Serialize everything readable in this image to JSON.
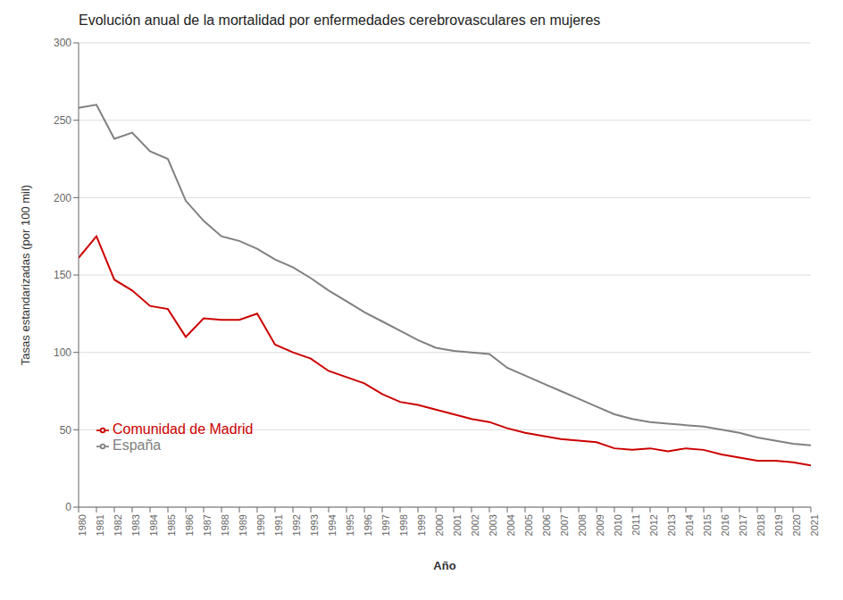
{
  "chart_data": {
    "type": "line",
    "title": "Evolución anual de la mortalidad por enfermedades cerebrovasculares en mujeres",
    "xlabel": "Año",
    "ylabel": "Tasas estandarizadas (por 100 mil)",
    "x": [
      1980,
      1981,
      1982,
      1983,
      1984,
      1985,
      1986,
      1987,
      1988,
      1989,
      1990,
      1991,
      1992,
      1993,
      1994,
      1995,
      1996,
      1997,
      1998,
      1999,
      2000,
      2001,
      2002,
      2003,
      2004,
      2005,
      2006,
      2007,
      2008,
      2009,
      2010,
      2011,
      2012,
      2013,
      2014,
      2015,
      2016,
      2017,
      2018,
      2019,
      2020,
      2021
    ],
    "series": [
      {
        "name": "Comunidad de Madrid",
        "color": "#cc0000",
        "values": [
          161,
          175,
          147,
          140,
          130,
          128,
          110,
          122,
          121,
          121,
          125,
          105,
          100,
          96,
          88,
          84,
          80,
          73,
          68,
          66,
          63,
          60,
          57,
          55,
          51,
          48,
          46,
          44,
          43,
          42,
          38,
          37,
          38,
          36,
          38,
          37,
          34,
          32,
          30,
          30,
          29,
          27
        ]
      },
      {
        "name": "España",
        "color": "#808080",
        "values": [
          258,
          260,
          238,
          242,
          230,
          225,
          198,
          185,
          175,
          172,
          167,
          160,
          155,
          148,
          140,
          133,
          126,
          120,
          114,
          108,
          103,
          101,
          100,
          99,
          90,
          85,
          80,
          75,
          70,
          65,
          60,
          57,
          55,
          54,
          53,
          52,
          50,
          48,
          45,
          43,
          41,
          40
        ]
      }
    ],
    "xlim": [
      1980,
      2021
    ],
    "xticks": [
      1980,
      1981,
      1982,
      1983,
      1984,
      1985,
      1986,
      1987,
      1988,
      1989,
      1990,
      1991,
      1992,
      1993,
      1994,
      1995,
      1996,
      1997,
      1998,
      1999,
      2000,
      2001,
      2002,
      2003,
      2004,
      2005,
      2006,
      2007,
      2008,
      2009,
      2010,
      2011,
      2012,
      2013,
      2014,
      2015,
      2016,
      2017,
      2018,
      2019,
      2020,
      2021
    ],
    "ylim": [
      0,
      300
    ],
    "yticks": [
      0,
      50,
      100,
      150,
      200,
      250,
      300
    ],
    "grid": true,
    "legend": "lower left"
  }
}
